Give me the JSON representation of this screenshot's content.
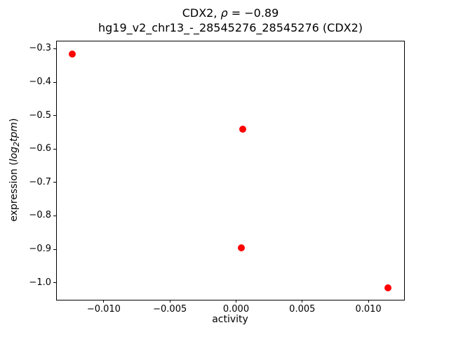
{
  "title": {
    "line1_prefix": "CDX2, ",
    "line1_rho": "ρ",
    "line1_rest": " = −0.89",
    "line2": "hg19_v2_chr13_-_28545276_28545276 (CDX2)"
  },
  "chart_data": {
    "type": "scatter",
    "title": "CDX2, ρ = −0.89",
    "subtitle": "hg19_v2_chr13_-_28545276_28545276 (CDX2)",
    "correlation_rho": -0.89,
    "xlabel": "activity",
    "ylabel": "expression (log2tpm)",
    "ylabel_parts": {
      "prefix": "expression (",
      "log": "log",
      "sub": "2",
      "tpm": "tpm",
      "suffix": ")"
    },
    "xlim": [
      -0.0136,
      0.0127
    ],
    "ylim": [
      -1.051,
      -0.276
    ],
    "grid": false,
    "x_ticks": [
      {
        "v": -0.01,
        "label": "−0.010"
      },
      {
        "v": -0.005,
        "label": "−0.005"
      },
      {
        "v": 0.0,
        "label": "0.000"
      },
      {
        "v": 0.005,
        "label": "0.005"
      },
      {
        "v": 0.01,
        "label": "0.010"
      }
    ],
    "y_ticks": [
      {
        "v": -0.3,
        "label": "−0.3"
      },
      {
        "v": -0.4,
        "label": "−0.4"
      },
      {
        "v": -0.5,
        "label": "−0.5"
      },
      {
        "v": -0.6,
        "label": "−0.6"
      },
      {
        "v": -0.7,
        "label": "−0.7"
      },
      {
        "v": -0.8,
        "label": "−0.8"
      },
      {
        "v": -0.9,
        "label": "−0.9"
      },
      {
        "v": -1.0,
        "label": "−1.0"
      }
    ],
    "points": [
      {
        "x": -0.0124,
        "y": -0.315
      },
      {
        "x": 0.0005,
        "y": -0.54
      },
      {
        "x": 0.0004,
        "y": -0.895
      },
      {
        "x": 0.0115,
        "y": -1.015
      }
    ],
    "marker_color": "#ff0000",
    "marker_size_px": 10
  }
}
